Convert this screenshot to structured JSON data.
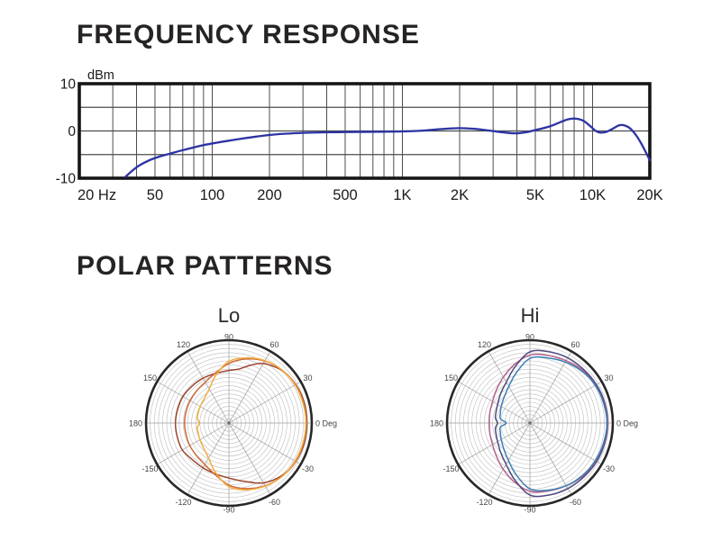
{
  "page": {
    "background": "#ffffff"
  },
  "sections": {
    "frequency_response": {
      "title": "FREQUENCY RESPONSE"
    },
    "polar_patterns": {
      "title": "POLAR PATTERNS"
    }
  },
  "colors": {
    "heading": "#262324",
    "axis_text": "#1b1b1b",
    "freq_grid": "#4c4c4c",
    "freq_border": "#161616",
    "freq_curve": "#2c33a4",
    "polar_ring": "#bcbcbc",
    "polar_spoke": "#9c9c9c",
    "polar_outer": "#282828",
    "polar_label": "#454545",
    "polar_title": "#2b2b2b"
  },
  "chart_data": [
    {
      "id": "frequency-response",
      "type": "line",
      "title": "FREQUENCY RESPONSE",
      "xlabel": "",
      "ylabel": "dBm",
      "x_scale": "log",
      "xlim": [
        20,
        20000
      ],
      "ylim": [
        -10,
        10
      ],
      "grid": true,
      "y_ticks": [
        {
          "v": 10,
          "label": "10"
        },
        {
          "v": 0,
          "label": "0"
        },
        {
          "v": -10,
          "label": "-10"
        }
      ],
      "x_ticks": [
        {
          "v": 20,
          "label": "20 Hz",
          "align": "start"
        },
        {
          "v": 50,
          "label": "50"
        },
        {
          "v": 100,
          "label": "100"
        },
        {
          "v": 200,
          "label": "200"
        },
        {
          "v": 500,
          "label": "500"
        },
        {
          "v": 1000,
          "label": "1K"
        },
        {
          "v": 2000,
          "label": "2K"
        },
        {
          "v": 5000,
          "label": "5K"
        },
        {
          "v": 10000,
          "label": "10K"
        },
        {
          "v": 20000,
          "label": "20K"
        }
      ],
      "grid_y": [
        5,
        0,
        -5
      ],
      "grid_x": [
        30,
        40,
        50,
        60,
        70,
        80,
        90,
        100,
        200,
        300,
        400,
        500,
        600,
        700,
        800,
        900,
        1000,
        2000,
        3000,
        4000,
        5000,
        6000,
        7000,
        8000,
        9000,
        10000
      ],
      "series": [
        {
          "name": "response-db",
          "color": "#2c33a4",
          "points": [
            [
              35,
              -9.7
            ],
            [
              38,
              -8.4
            ],
            [
              41,
              -7.4
            ],
            [
              44,
              -6.7
            ],
            [
              48,
              -6.0
            ],
            [
              53,
              -5.4
            ],
            [
              60,
              -4.8
            ],
            [
              68,
              -4.2
            ],
            [
              78,
              -3.6
            ],
            [
              90,
              -3.0
            ],
            [
              105,
              -2.5
            ],
            [
              125,
              -2.0
            ],
            [
              145,
              -1.6
            ],
            [
              170,
              -1.2
            ],
            [
              200,
              -0.85
            ],
            [
              240,
              -0.6
            ],
            [
              300,
              -0.4
            ],
            [
              380,
              -0.3
            ],
            [
              480,
              -0.25
            ],
            [
              600,
              -0.2
            ],
            [
              800,
              -0.15
            ],
            [
              1000,
              -0.1
            ],
            [
              1300,
              0.1
            ],
            [
              1600,
              0.4
            ],
            [
              2000,
              0.6
            ],
            [
              2400,
              0.45
            ],
            [
              2900,
              0.05
            ],
            [
              3400,
              -0.3
            ],
            [
              3900,
              -0.5
            ],
            [
              4500,
              -0.25
            ],
            [
              5200,
              0.35
            ],
            [
              6000,
              1.0
            ],
            [
              6800,
              1.9
            ],
            [
              7500,
              2.5
            ],
            [
              8200,
              2.6
            ],
            [
              9000,
              2.1
            ],
            [
              9800,
              0.9
            ],
            [
              10400,
              0.0
            ],
            [
              11000,
              -0.35
            ],
            [
              11800,
              -0.2
            ],
            [
              12800,
              0.5
            ],
            [
              13800,
              1.2
            ],
            [
              14800,
              1.15
            ],
            [
              15800,
              0.5
            ],
            [
              17000,
              -1.0
            ],
            [
              18000,
              -2.6
            ],
            [
              19000,
              -4.4
            ],
            [
              20000,
              -6.2
            ]
          ]
        }
      ]
    },
    {
      "id": "polar-lo",
      "type": "polar",
      "title": "Lo",
      "rings": 20,
      "spoke_step_deg": 30,
      "r_max": 1.0,
      "angle_labels": [
        {
          "deg": 90,
          "label": "90"
        },
        {
          "deg": 60,
          "label": "60"
        },
        {
          "deg": 30,
          "label": "30"
        },
        {
          "deg": 0,
          "label": "0 Deg"
        },
        {
          "deg": -30,
          "label": "-30"
        },
        {
          "deg": -60,
          "label": "-60"
        },
        {
          "deg": -90,
          "label": "-90"
        },
        {
          "deg": -120,
          "label": "-120"
        },
        {
          "deg": -150,
          "label": "-150"
        },
        {
          "deg": 180,
          "label": "180"
        },
        {
          "deg": 150,
          "label": "150"
        },
        {
          "deg": 120,
          "label": "120"
        }
      ],
      "series": [
        {
          "name": "lo-dark-red",
          "color": "#9c4531",
          "points_deg_r": [
            [
              0,
              0.94
            ],
            [
              15,
              0.94
            ],
            [
              30,
              0.93
            ],
            [
              45,
              0.9
            ],
            [
              60,
              0.83
            ],
            [
              70,
              0.74
            ],
            [
              80,
              0.66
            ],
            [
              90,
              0.635
            ],
            [
              105,
              0.62
            ],
            [
              120,
              0.625
            ],
            [
              135,
              0.63
            ],
            [
              150,
              0.64
            ],
            [
              165,
              0.64
            ],
            [
              180,
              0.645
            ],
            [
              195,
              0.645
            ],
            [
              210,
              0.65
            ],
            [
              225,
              0.625
            ],
            [
              240,
              0.625
            ],
            [
              255,
              0.635
            ],
            [
              270,
              0.665
            ],
            [
              285,
              0.73
            ],
            [
              300,
              0.835
            ],
            [
              315,
              0.9
            ],
            [
              330,
              0.93
            ],
            [
              345,
              0.94
            ]
          ]
        },
        {
          "name": "lo-orange",
          "color": "#cd6b38",
          "points_deg_r": [
            [
              0,
              0.93
            ],
            [
              15,
              0.93
            ],
            [
              30,
              0.925
            ],
            [
              45,
              0.905
            ],
            [
              60,
              0.865
            ],
            [
              75,
              0.8
            ],
            [
              90,
              0.72
            ],
            [
              105,
              0.625
            ],
            [
              120,
              0.57
            ],
            [
              135,
              0.55
            ],
            [
              150,
              0.54
            ],
            [
              165,
              0.535
            ],
            [
              180,
              0.535
            ],
            [
              195,
              0.535
            ],
            [
              210,
              0.545
            ],
            [
              225,
              0.555
            ],
            [
              240,
              0.58
            ],
            [
              255,
              0.645
            ],
            [
              270,
              0.75
            ],
            [
              285,
              0.82
            ],
            [
              300,
              0.875
            ],
            [
              315,
              0.91
            ],
            [
              330,
              0.93
            ],
            [
              345,
              0.93
            ]
          ]
        },
        {
          "name": "lo-amber",
          "color": "#f3ad41",
          "points_deg_r": [
            [
              0,
              0.93
            ],
            [
              15,
              0.925
            ],
            [
              30,
              0.92
            ],
            [
              45,
              0.905
            ],
            [
              60,
              0.87
            ],
            [
              75,
              0.815
            ],
            [
              90,
              0.745
            ],
            [
              105,
              0.6
            ],
            [
              120,
              0.475
            ],
            [
              135,
              0.42
            ],
            [
              150,
              0.4
            ],
            [
              162,
              0.39
            ],
            [
              172,
              0.385
            ],
            [
              180,
              0.355
            ],
            [
              188,
              0.385
            ],
            [
              198,
              0.39
            ],
            [
              210,
              0.405
            ],
            [
              225,
              0.43
            ],
            [
              240,
              0.49
            ],
            [
              255,
              0.62
            ],
            [
              270,
              0.77
            ],
            [
              285,
              0.835
            ],
            [
              300,
              0.88
            ],
            [
              315,
              0.91
            ],
            [
              330,
              0.92
            ],
            [
              345,
              0.925
            ]
          ]
        }
      ]
    },
    {
      "id": "polar-hi",
      "type": "polar",
      "title": "Hi",
      "rings": 20,
      "spoke_step_deg": 30,
      "r_max": 1.0,
      "angle_labels": [
        {
          "deg": 90,
          "label": "90"
        },
        {
          "deg": 60,
          "label": "60"
        },
        {
          "deg": 30,
          "label": "30"
        },
        {
          "deg": 0,
          "label": "0 Deg"
        },
        {
          "deg": -30,
          "label": "-30"
        },
        {
          "deg": -60,
          "label": "-60"
        },
        {
          "deg": -90,
          "label": "-90"
        },
        {
          "deg": -120,
          "label": "-120"
        },
        {
          "deg": -150,
          "label": "-150"
        },
        {
          "deg": 180,
          "label": "180"
        },
        {
          "deg": 150,
          "label": "150"
        },
        {
          "deg": 120,
          "label": "120"
        }
      ],
      "series": [
        {
          "name": "hi-pink",
          "color": "#b2648c",
          "points_deg_r": [
            [
              0,
              0.94
            ],
            [
              15,
              0.935
            ],
            [
              30,
              0.925
            ],
            [
              45,
              0.9
            ],
            [
              60,
              0.87
            ],
            [
              75,
              0.845
            ],
            [
              90,
              0.82
            ],
            [
              105,
              0.73
            ],
            [
              120,
              0.64
            ],
            [
              135,
              0.57
            ],
            [
              150,
              0.52
            ],
            [
              165,
              0.5
            ],
            [
              180,
              0.49
            ],
            [
              195,
              0.5
            ],
            [
              210,
              0.52
            ],
            [
              225,
              0.57
            ],
            [
              240,
              0.645
            ],
            [
              255,
              0.735
            ],
            [
              270,
              0.825
            ],
            [
              285,
              0.85
            ],
            [
              300,
              0.875
            ],
            [
              315,
              0.905
            ],
            [
              330,
              0.925
            ],
            [
              345,
              0.935
            ]
          ]
        },
        {
          "name": "hi-purple",
          "color": "#514a80",
          "points_deg_r": [
            [
              0,
              0.93
            ],
            [
              15,
              0.93
            ],
            [
              30,
              0.925
            ],
            [
              45,
              0.915
            ],
            [
              60,
              0.91
            ],
            [
              75,
              0.89
            ],
            [
              90,
              0.86
            ],
            [
              105,
              0.7
            ],
            [
              120,
              0.57
            ],
            [
              135,
              0.5
            ],
            [
              150,
              0.45
            ],
            [
              162,
              0.43
            ],
            [
              172,
              0.42
            ],
            [
              180,
              0.39
            ],
            [
              188,
              0.42
            ],
            [
              198,
              0.43
            ],
            [
              210,
              0.45
            ],
            [
              225,
              0.5
            ],
            [
              240,
              0.575
            ],
            [
              255,
              0.71
            ],
            [
              270,
              0.87
            ],
            [
              285,
              0.9
            ],
            [
              300,
              0.915
            ],
            [
              315,
              0.92
            ],
            [
              330,
              0.93
            ],
            [
              345,
              0.93
            ]
          ]
        },
        {
          "name": "hi-blue",
          "color": "#3b7fb4",
          "points_deg_r": [
            [
              0,
              0.93
            ],
            [
              15,
              0.92
            ],
            [
              30,
              0.91
            ],
            [
              45,
              0.885
            ],
            [
              60,
              0.85
            ],
            [
              75,
              0.815
            ],
            [
              90,
              0.78
            ],
            [
              105,
              0.63
            ],
            [
              120,
              0.51
            ],
            [
              135,
              0.44
            ],
            [
              150,
              0.4
            ],
            [
              162,
              0.375
            ],
            [
              172,
              0.36
            ],
            [
              180,
              0.285
            ],
            [
              188,
              0.36
            ],
            [
              198,
              0.375
            ],
            [
              210,
              0.4
            ],
            [
              225,
              0.445
            ],
            [
              240,
              0.52
            ],
            [
              255,
              0.645
            ],
            [
              270,
              0.795
            ],
            [
              285,
              0.84
            ],
            [
              300,
              0.875
            ],
            [
              315,
              0.895
            ],
            [
              330,
              0.91
            ],
            [
              345,
              0.92
            ]
          ]
        }
      ]
    }
  ]
}
